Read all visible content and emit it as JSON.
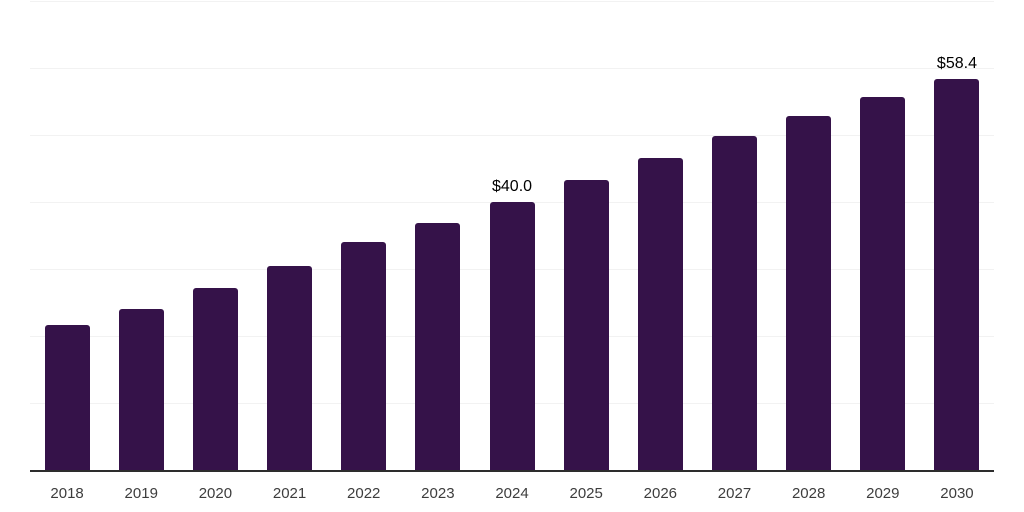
{
  "chart_data": {
    "type": "bar",
    "title": "",
    "categories": [
      "2018",
      "2019",
      "2020",
      "2021",
      "2022",
      "2023",
      "2024",
      "2025",
      "2026",
      "2027",
      "2028",
      "2029",
      "2030"
    ],
    "values": [
      21.7,
      24.1,
      27.2,
      30.5,
      34.0,
      36.9,
      40.0,
      43.3,
      46.6,
      49.8,
      52.8,
      55.7,
      58.4
    ],
    "data_labels": [
      "",
      "",
      "",
      "",
      "",
      "",
      "$40.0",
      "",
      "",
      "",
      "",
      "",
      "$58.4"
    ],
    "xlabel": "",
    "ylabel": "",
    "ylim": [
      0,
      70
    ],
    "gridline_step": 10,
    "grid": true,
    "legend_position": "none",
    "y_tick_labels_visible": false
  },
  "colors": {
    "bar": "#351249",
    "gridline": "#f2f2f2",
    "axis_line": "#2d2d2d",
    "x_label_text": "#3d3d3d",
    "data_label_text": "#000000",
    "background": "#ffffff"
  }
}
